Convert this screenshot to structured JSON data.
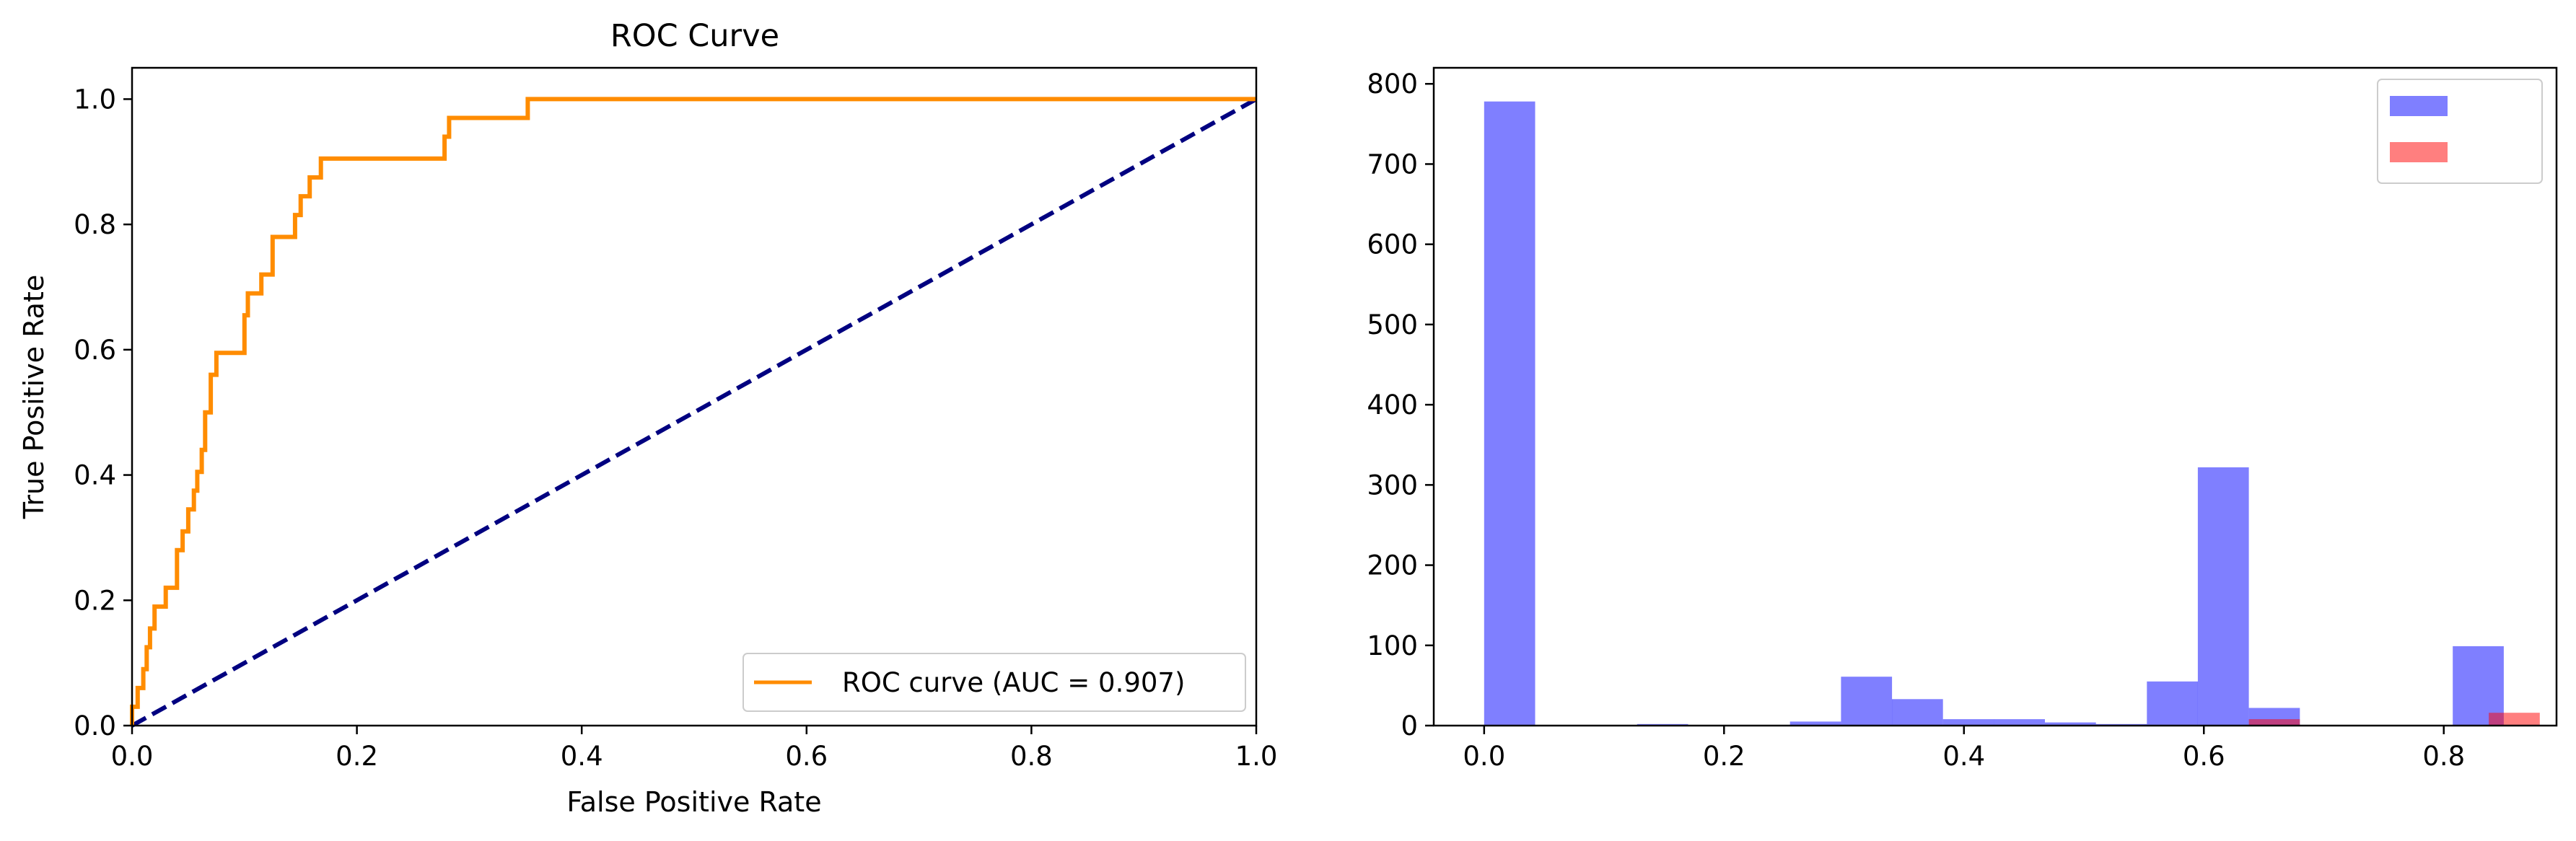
{
  "chart_data": [
    {
      "type": "line",
      "title": "ROC Curve",
      "xlabel": "False Positive Rate",
      "ylabel": "True Positive Rate",
      "xlim": [
        0,
        1.0
      ],
      "ylim": [
        0,
        1.05
      ],
      "xticks": [
        "0.0",
        "0.2",
        "0.4",
        "0.6",
        "0.8",
        "1.0"
      ],
      "yticks": [
        "0.0",
        "0.2",
        "0.4",
        "0.6",
        "0.8",
        "1.0"
      ],
      "legend_position": "lower-right",
      "grid": false,
      "series": [
        {
          "name": "ROC curve (AUC = 0.907)",
          "color": "#ff8c00",
          "style": "solid",
          "x": [
            0.0,
            0.0,
            0.005,
            0.005,
            0.01,
            0.01,
            0.013,
            0.013,
            0.016,
            0.016,
            0.02,
            0.02,
            0.03,
            0.03,
            0.04,
            0.04,
            0.045,
            0.045,
            0.05,
            0.05,
            0.055,
            0.055,
            0.058,
            0.058,
            0.062,
            0.062,
            0.065,
            0.065,
            0.07,
            0.07,
            0.075,
            0.075,
            0.1,
            0.1,
            0.103,
            0.103,
            0.115,
            0.115,
            0.125,
            0.125,
            0.145,
            0.145,
            0.15,
            0.15,
            0.158,
            0.158,
            0.168,
            0.168,
            0.278,
            0.278,
            0.282,
            0.282,
            0.352,
            0.352,
            1.0
          ],
          "y": [
            0.0,
            0.03,
            0.03,
            0.06,
            0.06,
            0.09,
            0.09,
            0.125,
            0.125,
            0.155,
            0.155,
            0.19,
            0.19,
            0.22,
            0.22,
            0.28,
            0.28,
            0.31,
            0.31,
            0.345,
            0.345,
            0.375,
            0.375,
            0.405,
            0.405,
            0.44,
            0.44,
            0.5,
            0.5,
            0.56,
            0.56,
            0.595,
            0.595,
            0.655,
            0.655,
            0.69,
            0.69,
            0.72,
            0.72,
            0.78,
            0.78,
            0.815,
            0.815,
            0.845,
            0.845,
            0.875,
            0.875,
            0.905,
            0.905,
            0.94,
            0.94,
            0.97,
            0.97,
            1.0,
            1.0
          ]
        },
        {
          "name": "",
          "color": "#000080",
          "style": "dashed",
          "x": [
            0,
            1
          ],
          "y": [
            0,
            1
          ]
        }
      ]
    },
    {
      "type": "bar",
      "title": "",
      "xlabel": "",
      "ylabel": "",
      "xlim": [
        -0.042,
        0.894
      ],
      "ylim": [
        0,
        820
      ],
      "xticks": [
        "0.0",
        "0.2",
        "0.4",
        "0.6",
        "0.8"
      ],
      "yticks": [
        "0",
        "100",
        "200",
        "300",
        "400",
        "500",
        "600",
        "700",
        "800"
      ],
      "legend_position": "upper-right",
      "grid": false,
      "bin_width": 0.0425,
      "series": [
        {
          "name": "",
          "color": "#0000ff",
          "opacity": 0.5,
          "bins": [
            {
              "x": 0.0,
              "value": 778
            },
            {
              "x": 0.1275,
              "value": 2
            },
            {
              "x": 0.255,
              "value": 5
            },
            {
              "x": 0.2975,
              "value": 61
            },
            {
              "x": 0.34,
              "value": 33
            },
            {
              "x": 0.3825,
              "value": 8
            },
            {
              "x": 0.425,
              "value": 8
            },
            {
              "x": 0.4675,
              "value": 4
            },
            {
              "x": 0.51,
              "value": 2
            },
            {
              "x": 0.5525,
              "value": 55
            },
            {
              "x": 0.595,
              "value": 322
            },
            {
              "x": 0.6375,
              "value": 22
            },
            {
              "x": 0.8075,
              "value": 99
            }
          ]
        },
        {
          "name": "",
          "color": "#ff0000",
          "opacity": 0.5,
          "bins": [
            {
              "x": 0.6375,
              "value": 8
            },
            {
              "x": 0.8375,
              "value": 16
            }
          ]
        }
      ]
    }
  ]
}
